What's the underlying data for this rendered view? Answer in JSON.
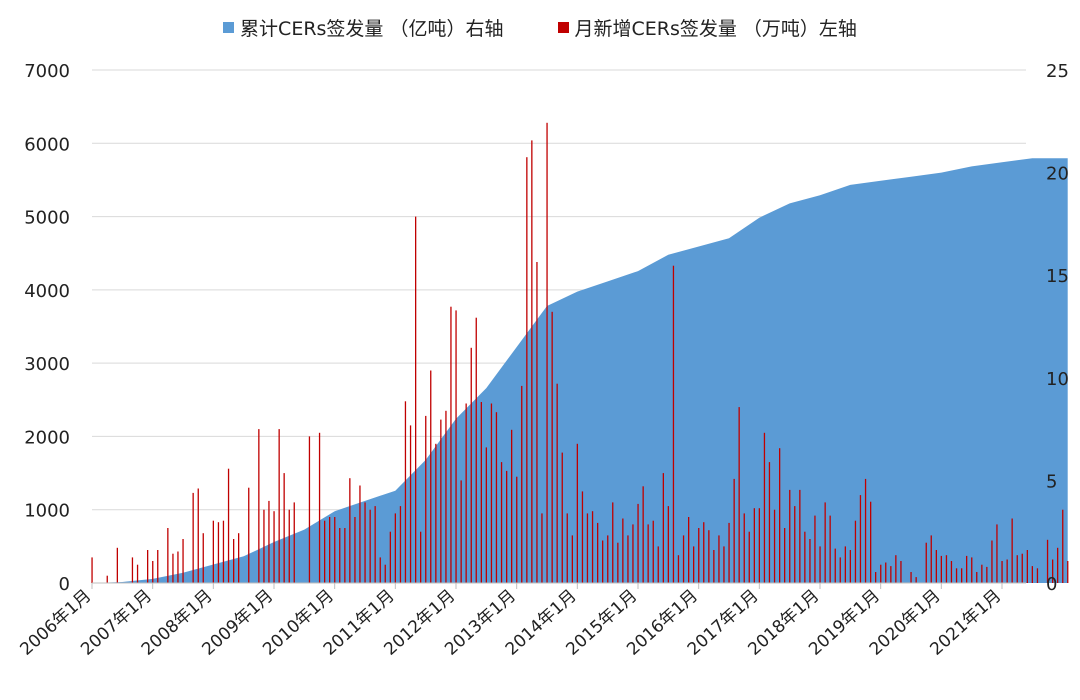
{
  "chart_data": {
    "type": "bar+area",
    "title": "",
    "legend": [
      {
        "key": "cumulative",
        "label": "累计CERs签发量 （亿吨）右轴",
        "color": "#5B9BD5"
      },
      {
        "key": "monthly",
        "label": "月新增CERs签发量 （万吨）左轴",
        "color": "#C00000"
      }
    ],
    "legend_position": "top-center",
    "grid": true,
    "left_axis": {
      "min": 0,
      "max": 7000,
      "ticks": [
        "0",
        "1000",
        "2000",
        "3000",
        "4000",
        "5000",
        "6000",
        "7000"
      ]
    },
    "right_axis": {
      "min": 0,
      "max": 25,
      "ticks": [
        "0",
        "5",
        "10",
        "15",
        "20",
        "25"
      ]
    },
    "x_tick_labels": [
      "2006年1月",
      "2007年1月",
      "2008年1月",
      "2009年1月",
      "2010年1月",
      "2011年1月",
      "2012年1月",
      "2013年1月",
      "2014年1月",
      "2015年1月",
      "2016年1月",
      "2017年1月",
      "2018年1月",
      "2019年1月",
      "2020年1月",
      "2021年1月"
    ],
    "start": "2006-01",
    "cumulative_series": {
      "name": "累计CERs签发量 （亿吨）右轴",
      "axis": "right",
      "points": [
        [
          "2006-01",
          0
        ],
        [
          "2006-07",
          0.05
        ],
        [
          "2007-01",
          0.2
        ],
        [
          "2007-07",
          0.5
        ],
        [
          "2008-01",
          0.9
        ],
        [
          "2008-07",
          1.3
        ],
        [
          "2009-01",
          2.0
        ],
        [
          "2009-07",
          2.6
        ],
        [
          "2010-01",
          3.5
        ],
        [
          "2010-07",
          4.0
        ],
        [
          "2011-01",
          4.5
        ],
        [
          "2011-07",
          6.0
        ],
        [
          "2012-01",
          8.0
        ],
        [
          "2012-07",
          9.5
        ],
        [
          "2013-01",
          11.5
        ],
        [
          "2013-07",
          13.5
        ],
        [
          "2014-01",
          14.2
        ],
        [
          "2014-07",
          14.7
        ],
        [
          "2015-01",
          15.2
        ],
        [
          "2015-07",
          16.0
        ],
        [
          "2016-01",
          16.4
        ],
        [
          "2016-07",
          16.8
        ],
        [
          "2017-01",
          17.8
        ],
        [
          "2017-07",
          18.5
        ],
        [
          "2018-01",
          18.9
        ],
        [
          "2018-07",
          19.4
        ],
        [
          "2019-01",
          19.6
        ],
        [
          "2019-07",
          19.8
        ],
        [
          "2020-01",
          20.0
        ],
        [
          "2020-07",
          20.3
        ],
        [
          "2021-01",
          20.5
        ],
        [
          "2021-07",
          20.7
        ]
      ]
    },
    "monthly_series": {
      "name": "月新增CERs签发量 （万吨）左轴",
      "axis": "left",
      "values": [
        350,
        0,
        0,
        100,
        0,
        480,
        0,
        0,
        350,
        250,
        0,
        450,
        300,
        450,
        0,
        750,
        400,
        430,
        600,
        0,
        1230,
        1290,
        680,
        0,
        850,
        830,
        850,
        1560,
        600,
        680,
        0,
        1300,
        0,
        2100,
        1000,
        1120,
        980,
        2100,
        1500,
        1000,
        1100,
        0,
        0,
        2000,
        0,
        2050,
        850,
        900,
        900,
        750,
        750,
        1430,
        900,
        1330,
        1100,
        1000,
        1050,
        350,
        250,
        700,
        950,
        1050,
        2480,
        2150,
        5000,
        700,
        2280,
        2900,
        1900,
        2230,
        2350,
        3770,
        3720,
        1400,
        2450,
        3210,
        3620,
        2470,
        1850,
        2450,
        2330,
        1650,
        1530,
        2090,
        1450,
        2690,
        5810,
        6040,
        4380,
        950,
        6280,
        3700,
        2720,
        1780,
        950,
        650,
        1900,
        1250,
        950,
        980,
        820,
        580,
        650,
        1100,
        550,
        880,
        650,
        800,
        1080,
        1320,
        800,
        850,
        500,
        1500,
        1050,
        4330,
        380,
        650,
        900,
        500,
        750,
        830,
        720,
        450,
        650,
        500,
        820,
        1420,
        2400,
        950,
        700,
        1020,
        1020,
        2050,
        1650,
        1000,
        1840,
        750,
        1270,
        1050,
        1270,
        700,
        600,
        920,
        500,
        1100,
        920,
        470,
        350,
        500,
        450,
        850,
        1200,
        1420,
        1110,
        150,
        250,
        280,
        230,
        380,
        300,
        0,
        150,
        80,
        0,
        550,
        650,
        450,
        370,
        380,
        300,
        200,
        200,
        370,
        350,
        150,
        250,
        220,
        580,
        800,
        300,
        320,
        880,
        380,
        400,
        450,
        230,
        200,
        0,
        590,
        320,
        480,
        1000,
        300
      ]
    }
  }
}
